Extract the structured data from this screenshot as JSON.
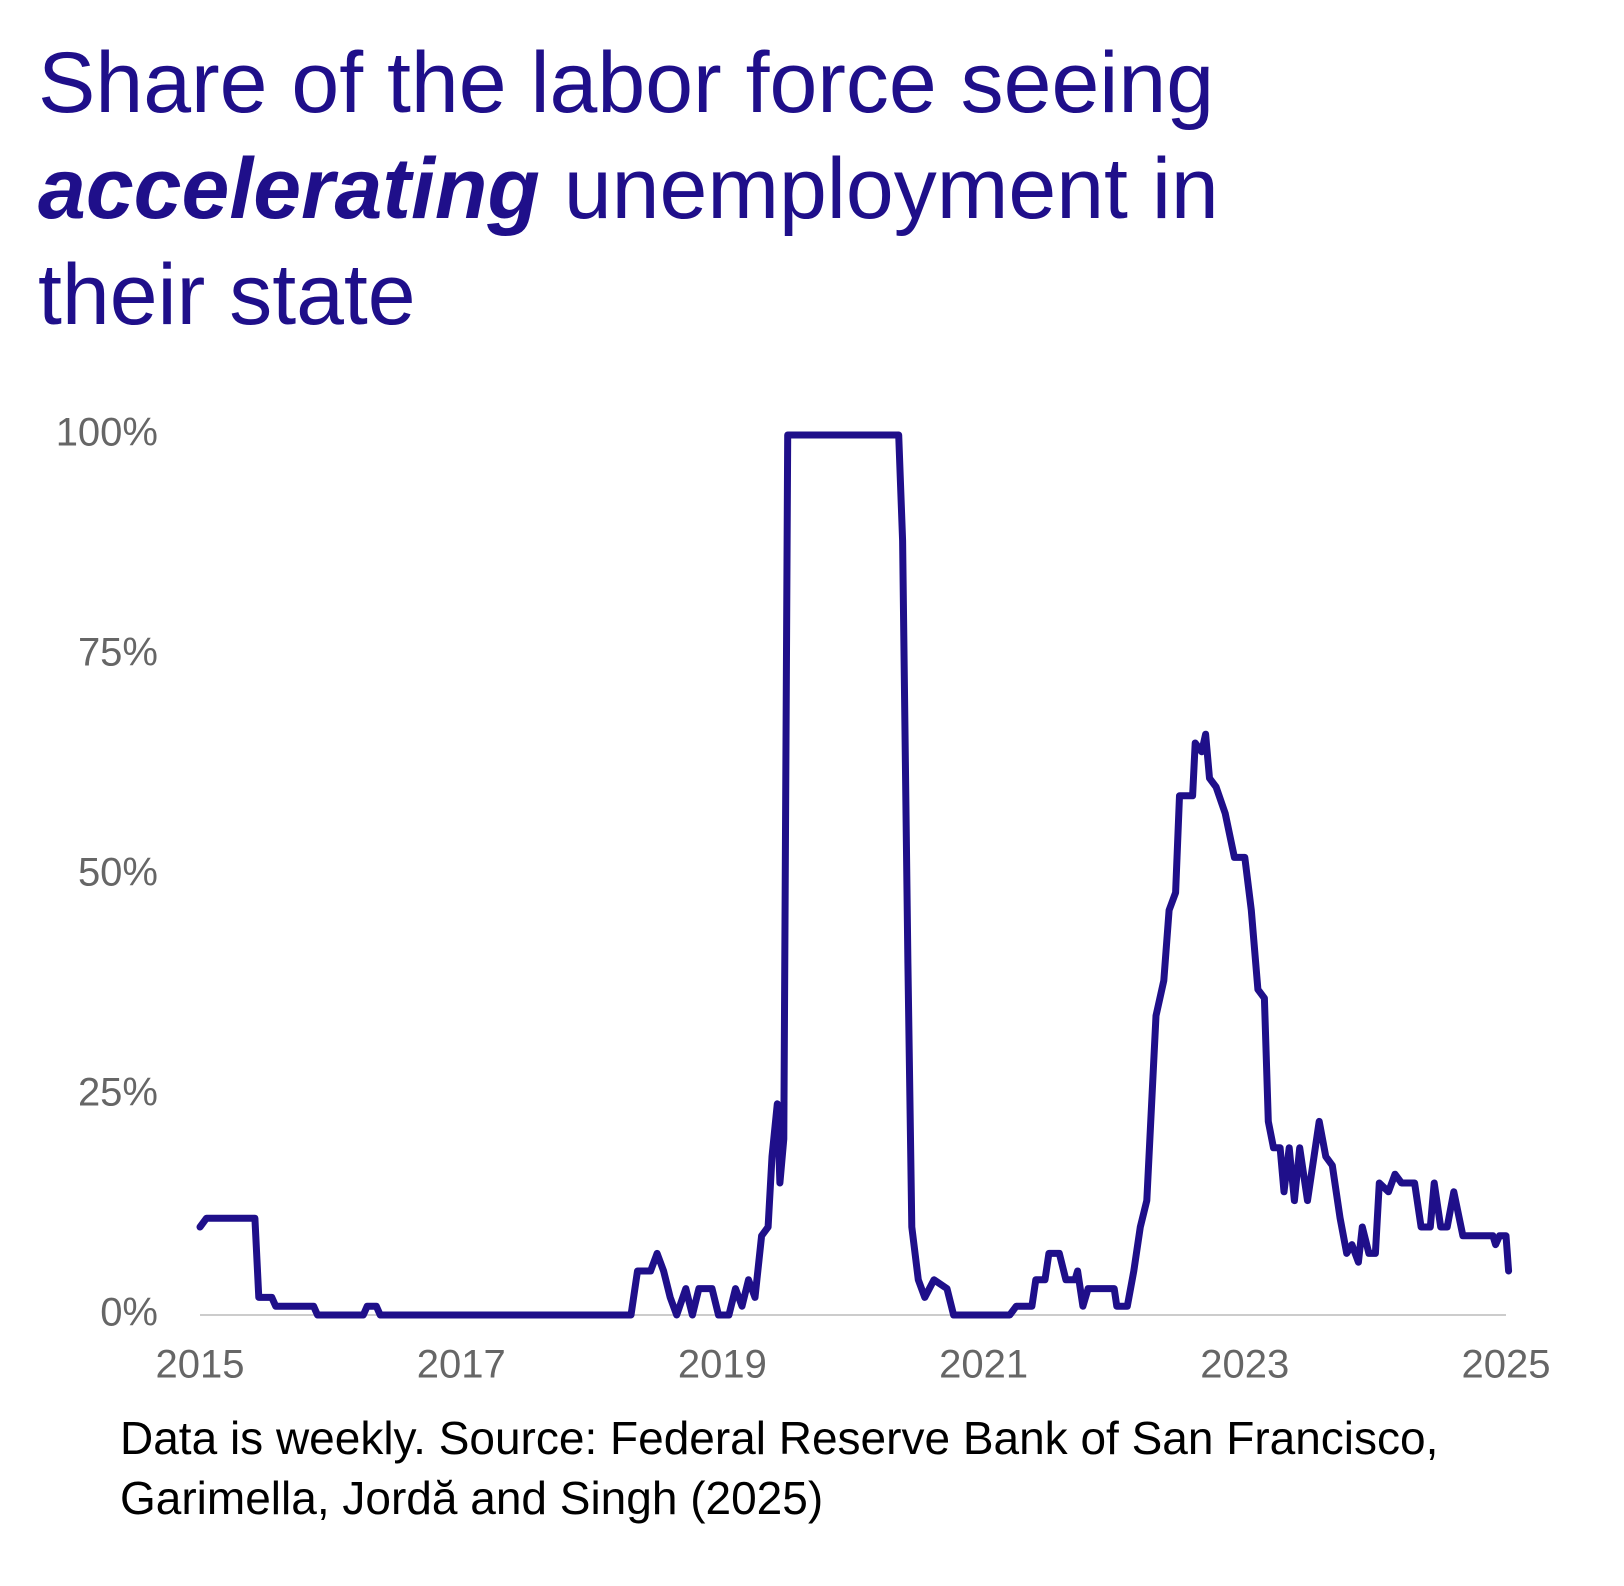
{
  "chart_data": {
    "type": "line",
    "title": [
      "Share of the labor force seeing",
      "accelerating",
      "unemployment in their state"
    ],
    "note": "Data is weekly. Source: Federal Reserve Bank of San Francisco, Garimella, Jordă and Singh (2025)",
    "color": "#1f0f8a",
    "xlim": [
      2015,
      2025
    ],
    "xticks": [
      2015,
      2017,
      2019,
      2021,
      2023,
      2025
    ],
    "ylim": [
      0,
      100
    ],
    "yticks": [
      {
        "value": 0,
        "label": "0%"
      },
      {
        "value": 25,
        "label": "25%"
      },
      {
        "value": 50,
        "label": "50%"
      },
      {
        "value": 75,
        "label": "75%"
      },
      {
        "value": 100,
        "label": "100%"
      }
    ],
    "grid": false,
    "x": [
      2015.0,
      2015.05,
      2015.42,
      2015.45,
      2015.55,
      2015.58,
      2015.87,
      2015.9,
      2016.25,
      2016.28,
      2016.35,
      2016.38,
      2018.3,
      2018.35,
      2018.45,
      2018.5,
      2018.55,
      2018.6,
      2018.65,
      2018.72,
      2018.77,
      2018.82,
      2018.92,
      2018.97,
      2019.05,
      2019.1,
      2019.15,
      2019.2,
      2019.25,
      2019.3,
      2019.35,
      2019.38,
      2019.42,
      2019.44,
      2019.47,
      2019.5,
      2020.35,
      2020.38,
      2020.42,
      2020.45,
      2020.5,
      2020.55,
      2020.62,
      2020.72,
      2020.77,
      2021.2,
      2021.25,
      2021.37,
      2021.4,
      2021.47,
      2021.5,
      2021.58,
      2021.63,
      2021.7,
      2021.72,
      2021.76,
      2021.8,
      2022.0,
      2022.02,
      2022.1,
      2022.15,
      2022.2,
      2022.25,
      2022.32,
      2022.38,
      2022.42,
      2022.47,
      2022.5,
      2022.6,
      2022.62,
      2022.67,
      2022.7,
      2022.73,
      2022.78,
      2022.85,
      2022.92,
      2023.0,
      2023.05,
      2023.1,
      2023.15,
      2023.18,
      2023.22,
      2023.27,
      2023.3,
      2023.34,
      2023.38,
      2023.42,
      2023.48,
      2023.53,
      2023.57,
      2023.62,
      2023.67,
      2023.73,
      2023.78,
      2023.82,
      2023.87,
      2023.9,
      2023.95,
      2024.0,
      2024.03,
      2024.1,
      2024.15,
      2024.2,
      2024.3,
      2024.35,
      2024.42,
      2024.45,
      2024.5,
      2024.55,
      2024.6,
      2024.67,
      2024.9,
      2024.92,
      2024.95,
      2025.0,
      2025.02
    ],
    "values": [
      10,
      11,
      11,
      2,
      2,
      1,
      1,
      0,
      0,
      1,
      1,
      0,
      0,
      5,
      5,
      7,
      5,
      2,
      0,
      3,
      0,
      3,
      3,
      0,
      0,
      3,
      1,
      4,
      2,
      9,
      10,
      18,
      24,
      15,
      20,
      100,
      100,
      88,
      40,
      10,
      4,
      2,
      4,
      3,
      0,
      0,
      1,
      1,
      4,
      4,
      7,
      7,
      4,
      4,
      5,
      1,
      3,
      3,
      1,
      1,
      5,
      10,
      13,
      34,
      38,
      46,
      48,
      59,
      59,
      65,
      64,
      66,
      61,
      60,
      57,
      52,
      52,
      46,
      37,
      36,
      22,
      19,
      19,
      14,
      19,
      13,
      19,
      13,
      18,
      22,
      18,
      17,
      11,
      7,
      8,
      6,
      10,
      7,
      7,
      15,
      14,
      16,
      15,
      15,
      10,
      10,
      15,
      10,
      10,
      14,
      9,
      9,
      8,
      9,
      9,
      5
    ]
  }
}
